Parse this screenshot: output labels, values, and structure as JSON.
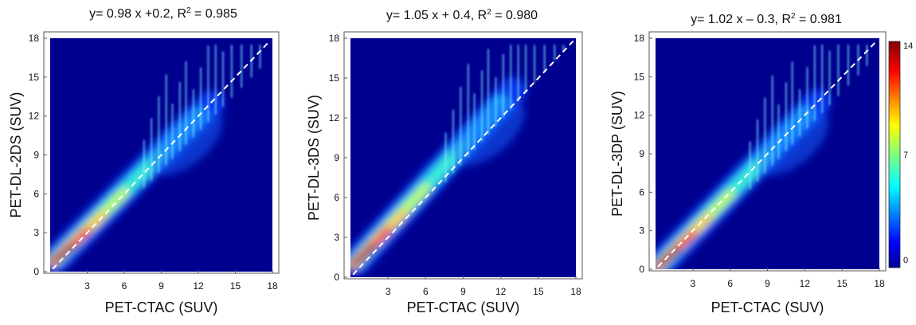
{
  "colors": {
    "background": "#ffffff",
    "colormap_low": "#00008f",
    "colormap_mid": "#22e0e0",
    "colormap_high": "#7f0000",
    "identity_line": "#ffffff"
  },
  "colorbar": {
    "ticks": [
      "14",
      "7",
      "0"
    ],
    "range": [
      0,
      14
    ],
    "colormap": "jet"
  },
  "chart_data": [
    {
      "type": "heatmap",
      "title": "y= 0.98 x +0.2,   R² = 0.985",
      "title_parts": {
        "lhs": "y= 0.98 x +0.2,   R",
        "sup": "2",
        "rhs": " = 0.985"
      },
      "xlabel": "PET-CTAC (SUV)",
      "ylabel": "PET-DL-2DS (SUV)",
      "xlim": [
        0,
        18
      ],
      "ylim": [
        0,
        18
      ],
      "xticks": [
        "3",
        "6",
        "9",
        "12",
        "15",
        "18"
      ],
      "yticks": [
        "0",
        "3",
        "6",
        "9",
        "12",
        "15",
        "18"
      ],
      "fit": {
        "slope": 0.98,
        "intercept": 0.2,
        "r2": 0.985
      },
      "reference_line": "identity",
      "density_peak_suv": [
        1.5,
        1.4
      ]
    },
    {
      "type": "heatmap",
      "title": "y= 1.05 x + 0.4,   R² = 0.980",
      "title_parts": {
        "lhs": "y= 1.05 x + 0.4,   R",
        "sup": "2",
        "rhs": " = 0.980"
      },
      "xlabel": "PET-CTAC (SUV)",
      "ylabel": "PET-DL-3DS (SUV)",
      "xlim": [
        0,
        18
      ],
      "ylim": [
        0,
        18
      ],
      "xticks": [
        "3",
        "6",
        "9",
        "12",
        "15",
        "18"
      ],
      "yticks": [
        "0",
        "3",
        "6",
        "9",
        "12",
        "15",
        "18"
      ],
      "fit": {
        "slope": 1.05,
        "intercept": 0.4,
        "r2": 0.98
      },
      "reference_line": "identity",
      "density_peak_suv": [
        1.8,
        2.2
      ]
    },
    {
      "type": "heatmap",
      "title": "y= 1.02 x – 0.3,   R² = 0.981",
      "title_parts": {
        "lhs": "y= 1.02 x – 0.3,   R",
        "sup": "2",
        "rhs": " = 0.981"
      },
      "xlabel": "PET-CTAC (SUV)",
      "ylabel": "PET-DL-3DP (SUV)",
      "xlim": [
        0,
        18
      ],
      "ylim": [
        0,
        18
      ],
      "xticks": [
        "3",
        "6",
        "9",
        "12",
        "15",
        "18"
      ],
      "yticks": [
        "0",
        "3",
        "6",
        "9",
        "12",
        "15",
        "18"
      ],
      "fit": {
        "slope": 1.02,
        "intercept": -0.3,
        "r2": 0.981
      },
      "reference_line": "identity",
      "density_peak_suv": [
        1.2,
        1.3
      ]
    }
  ]
}
